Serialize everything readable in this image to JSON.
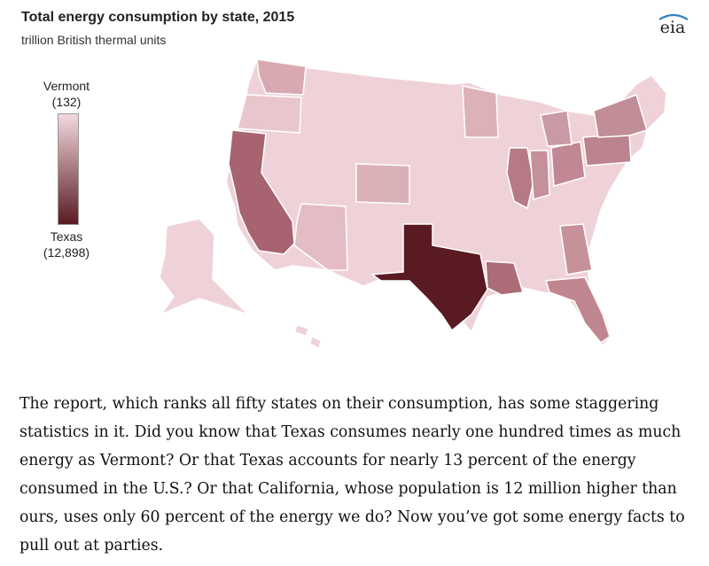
{
  "figure": {
    "title": "Total energy consumption by state, 2015",
    "subtitle": "trillion British thermal units",
    "logo_text": "eia",
    "legend": {
      "top_label": "Vermont",
      "top_value": "(132)",
      "bottom_label": "Texas",
      "bottom_value": "(12,898)",
      "min_value": 132,
      "max_value": 12898,
      "color_low": "#f2d9dd",
      "color_high": "#5a1a22"
    }
  },
  "map_data": {
    "states": [
      {
        "name": "Texas",
        "value": 12898
      },
      {
        "name": "California",
        "value": 7700
      },
      {
        "name": "Vermont",
        "value": 132
      }
    ],
    "colors": {
      "border": "#ffffff",
      "ocean": "#ffffff"
    }
  },
  "article": {
    "paragraph": "The report, which ranks all fifty states on their consumption, has some staggering statistics in it. Did you know that Texas consumes nearly one hundred times as much energy as Vermont? Or that Texas accounts for nearly 13 percent of the energy consumed in the U.S.? Or that California, whose population is 12 million higher than ours, uses only 60 percent of the energy we do? Now you’ve got some energy facts to pull out at parties."
  }
}
